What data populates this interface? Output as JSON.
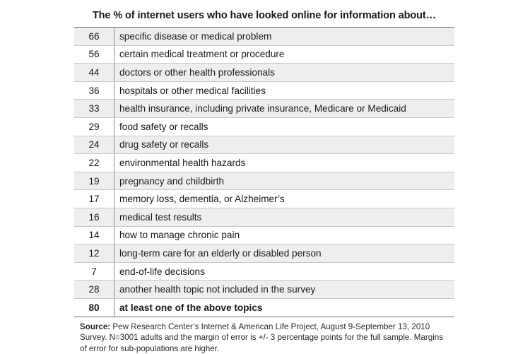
{
  "chart_data": {
    "type": "table",
    "title": "The % of internet users who have looked online for information about…",
    "rows": [
      {
        "value": "66",
        "label": "specific disease or medical problem"
      },
      {
        "value": "56",
        "label": "certain medical treatment or procedure"
      },
      {
        "value": "44",
        "label": "doctors or other health professionals"
      },
      {
        "value": "36",
        "label": "hospitals or other medical facilities"
      },
      {
        "value": "33",
        "label": "health insurance, including private insurance, Medicare or Medicaid"
      },
      {
        "value": "29",
        "label": "food safety or recalls"
      },
      {
        "value": "24",
        "label": "drug safety or recalls"
      },
      {
        "value": "22",
        "label": "environmental health hazards"
      },
      {
        "value": "19",
        "label": "pregnancy and childbirth"
      },
      {
        "value": "17",
        "label": "memory loss, dementia, or Alzheimer’s"
      },
      {
        "value": "16",
        "label": "medical test results"
      },
      {
        "value": "14",
        "label": "how to manage chronic pain"
      },
      {
        "value": "12",
        "label": "long-term care for an elderly or disabled person"
      },
      {
        "value": "7",
        "label": "end-of-life decisions"
      },
      {
        "value": "28",
        "label": "another health topic not included in the survey"
      },
      {
        "value": "80",
        "label": "at least one of the above topics",
        "bold": true
      }
    ],
    "source_label": "Source:",
    "source_text": "Pew Research Center’s Internet & American Life Project, August 9-September 13, 2010 Survey. N=3001 adults and the margin of error is +/- 3 percentage points for the full sample. Margins of error for sub-populations are higher."
  }
}
